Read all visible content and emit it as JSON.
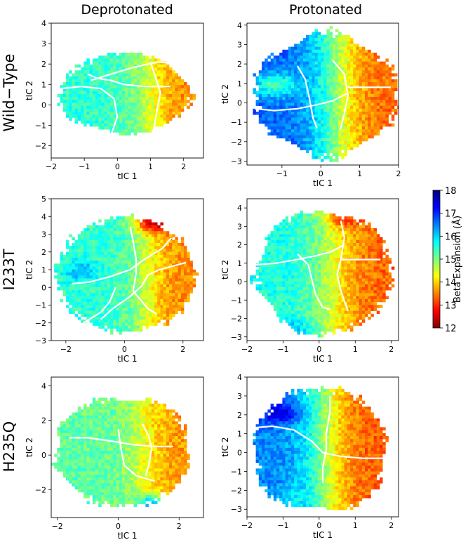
{
  "columns": [
    "Deprotonated",
    "Protonated"
  ],
  "rows": [
    "Wild−Type",
    "I233T",
    "H235Q"
  ],
  "colorbar": {
    "label": "Beta Expansion (Å)",
    "range": [
      12,
      18
    ],
    "ticks": [
      "12",
      "13",
      "14",
      "15",
      "16",
      "17",
      "18"
    ],
    "colormap": "jet-reversed",
    "colors": [
      "#800000",
      "#ff0000",
      "#ff8000",
      "#ffff00",
      "#80ff80",
      "#00ffff",
      "#0080ff",
      "#0000ff",
      "#000080"
    ]
  },
  "boundary_color": "#ffffff",
  "chart_data": [
    {
      "type": "heatmap",
      "row": "Wild−Type",
      "column": "Deprotonated",
      "xlabel": "tIC 1",
      "ylabel": "tIC 2",
      "xlim": [
        -2.0,
        2.6
      ],
      "ylim": [
        -2.6,
        4.0
      ],
      "xticks": [
        "−2",
        "−1",
        "0",
        "1",
        "2"
      ],
      "yticks": [
        "−2",
        "−1",
        "0",
        "1",
        "2",
        "3",
        "4"
      ],
      "xtick_values": [
        -2,
        -1,
        0,
        1,
        2
      ],
      "ytick_values": [
        -2,
        -1,
        0,
        1,
        2,
        3,
        4
      ],
      "color_trend": "≈15.5 on the left, ≈13.5 on the right"
    },
    {
      "type": "heatmap",
      "row": "Wild−Type",
      "column": "Protonated",
      "xlabel": "tIC 1",
      "ylabel": "tIC 2",
      "xlim": [
        -1.9,
        2.0
      ],
      "ylim": [
        -3.2,
        4.1
      ],
      "xticks": [
        "−1",
        "0",
        "1",
        "2"
      ],
      "yticks": [
        "−3",
        "−2",
        "−1",
        "0",
        "1",
        "2",
        "3",
        "4"
      ],
      "xtick_values": [
        -1,
        0,
        1,
        2
      ],
      "ytick_values": [
        -3,
        -2,
        -1,
        0,
        1,
        2,
        3,
        4
      ],
      "color_trend": "≈17 at lower left, ≈13.3 on the right"
    },
    {
      "type": "heatmap",
      "row": "I233T",
      "column": "Deprotonated",
      "xlabel": "tIC 1",
      "ylabel": "tIC 2",
      "xlim": [
        -2.5,
        2.7
      ],
      "ylim": [
        -3.0,
        5.0
      ],
      "xticks": [
        "−2",
        "0",
        "2"
      ],
      "yticks": [
        "−3",
        "−2",
        "−1",
        "0",
        "1",
        "2",
        "3",
        "4",
        "5"
      ],
      "xtick_values": [
        -2,
        0,
        2
      ],
      "ytick_values": [
        -3,
        -2,
        -1,
        0,
        1,
        2,
        3,
        4,
        5
      ],
      "color_trend": "≈15.5 on the left, ≈13.5 on the right, ≈12.5 at the top"
    },
    {
      "type": "heatmap",
      "row": "I233T",
      "column": "Protonated",
      "xlabel": "tIC 1",
      "ylabel": "tIC 2",
      "xlim": [
        -2.0,
        2.2
      ],
      "ylim": [
        -3.2,
        4.5
      ],
      "xticks": [
        "−2",
        "−1",
        "0",
        "1",
        "2"
      ],
      "yticks": [
        "−3",
        "−2",
        "−1",
        "0",
        "1",
        "2",
        "3",
        "4"
      ],
      "xtick_values": [
        -2,
        -1,
        0,
        1,
        2
      ],
      "ytick_values": [
        -3,
        -2,
        -1,
        0,
        1,
        2,
        3,
        4
      ],
      "color_trend": "≈15.5 on the left, ≈13.3 on the right"
    },
    {
      "type": "heatmap",
      "row": "H235Q",
      "column": "Deprotonated",
      "xlabel": "tIC 1",
      "ylabel": "tIC 2",
      "xlim": [
        -2.2,
        2.8
      ],
      "ylim": [
        -3.6,
        4.5
      ],
      "xticks": [
        "−2",
        "0",
        "2"
      ],
      "yticks": [
        "−2",
        "0",
        "2",
        "4"
      ],
      "xtick_values": [
        -2,
        0,
        2
      ],
      "ytick_values": [
        -2,
        0,
        2,
        4
      ],
      "color_trend": "≈15.2 on the left, ≈13.6 on the right"
    },
    {
      "type": "heatmap",
      "row": "H235Q",
      "column": "Protonated",
      "xlabel": "tIC 1",
      "ylabel": "tIC 2",
      "xlim": [
        -2.0,
        2.2
      ],
      "ylim": [
        -3.4,
        4.0
      ],
      "xticks": [
        "−2",
        "−1",
        "0",
        "1",
        "2"
      ],
      "yticks": [
        "−3",
        "−2",
        "−1",
        "0",
        "1",
        "2",
        "3",
        "4"
      ],
      "xtick_values": [
        -2,
        -1,
        0,
        1,
        2
      ],
      "ytick_values": [
        -3,
        -2,
        -1,
        0,
        1,
        2,
        3,
        4
      ],
      "color_trend": "≈16.5 on the left, ≈13.2 on the right"
    }
  ]
}
